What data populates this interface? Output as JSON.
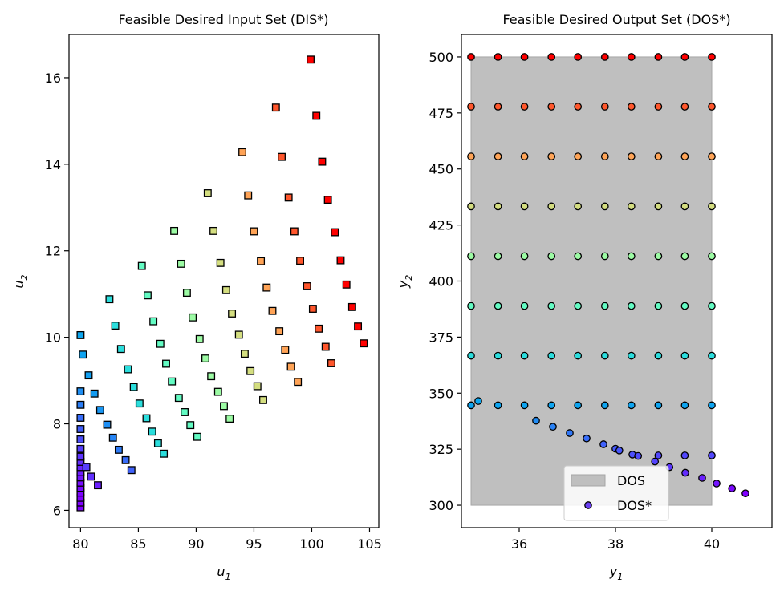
{
  "chart_data": [
    {
      "type": "scatter",
      "title": "Feasible Desired Input Set (DIS*)",
      "xlabel": "u",
      "xlabel_sub": "1",
      "ylabel": "u",
      "ylabel_sub": "2",
      "xlim": [
        79,
        105.8
      ],
      "ylim": [
        5.6,
        17.0
      ],
      "xticks": [
        80,
        85,
        90,
        95,
        100,
        105
      ],
      "yticks": [
        6,
        8,
        10,
        12,
        14,
        16
      ],
      "marker": "square",
      "colormap": "rainbow",
      "color_value_range": [
        300,
        500
      ],
      "grid": false,
      "points": [
        {
          "x": 80.0,
          "y": 6.07,
          "c": 300
        },
        {
          "x": 80.0,
          "y": 6.18,
          "c": 300
        },
        {
          "x": 80.0,
          "y": 6.29,
          "c": 300
        },
        {
          "x": 80.0,
          "y": 6.41,
          "c": 301
        },
        {
          "x": 80.0,
          "y": 6.52,
          "c": 302
        },
        {
          "x": 80.0,
          "y": 6.64,
          "c": 303
        },
        {
          "x": 80.0,
          "y": 6.76,
          "c": 305
        },
        {
          "x": 80.0,
          "y": 6.88,
          "c": 307
        },
        {
          "x": 80.0,
          "y": 7.0,
          "c": 309
        },
        {
          "x": 80.0,
          "y": 7.12,
          "c": 311
        },
        {
          "x": 80.0,
          "y": 7.24,
          "c": 313
        },
        {
          "x": 80.0,
          "y": 7.42,
          "c": 316
        },
        {
          "x": 80.0,
          "y": 7.64,
          "c": 320
        },
        {
          "x": 80.0,
          "y": 7.88,
          "c": 324
        },
        {
          "x": 80.0,
          "y": 8.14,
          "c": 328
        },
        {
          "x": 80.0,
          "y": 8.44,
          "c": 333
        },
        {
          "x": 80.0,
          "y": 8.75,
          "c": 338
        },
        {
          "x": 80.0,
          "y": 10.05,
          "c": 345
        },
        {
          "x": 80.5,
          "y": 7.0,
          "c": 316
        },
        {
          "x": 80.9,
          "y": 6.78,
          "c": 312
        },
        {
          "x": 81.5,
          "y": 6.58,
          "c": 308
        },
        {
          "x": 80.2,
          "y": 9.6,
          "c": 344
        },
        {
          "x": 80.7,
          "y": 9.12,
          "c": 343
        },
        {
          "x": 81.2,
          "y": 8.7,
          "c": 342
        },
        {
          "x": 81.7,
          "y": 8.32,
          "c": 340
        },
        {
          "x": 82.3,
          "y": 7.98,
          "c": 338
        },
        {
          "x": 82.8,
          "y": 7.68,
          "c": 335
        },
        {
          "x": 83.3,
          "y": 7.4,
          "c": 332
        },
        {
          "x": 83.9,
          "y": 7.16,
          "c": 328
        },
        {
          "x": 84.4,
          "y": 6.93,
          "c": 325
        },
        {
          "x": 82.5,
          "y": 10.88,
          "c": 367
        },
        {
          "x": 83.0,
          "y": 10.27,
          "c": 367
        },
        {
          "x": 83.5,
          "y": 9.73,
          "c": 367
        },
        {
          "x": 84.1,
          "y": 9.26,
          "c": 367
        },
        {
          "x": 84.6,
          "y": 8.85,
          "c": 367
        },
        {
          "x": 85.1,
          "y": 8.47,
          "c": 367
        },
        {
          "x": 85.7,
          "y": 8.13,
          "c": 367
        },
        {
          "x": 86.2,
          "y": 7.82,
          "c": 367
        },
        {
          "x": 86.7,
          "y": 7.55,
          "c": 367
        },
        {
          "x": 87.2,
          "y": 7.31,
          "c": 367
        },
        {
          "x": 85.3,
          "y": 11.65,
          "c": 389
        },
        {
          "x": 85.8,
          "y": 10.97,
          "c": 389
        },
        {
          "x": 86.3,
          "y": 10.37,
          "c": 389
        },
        {
          "x": 86.9,
          "y": 9.85,
          "c": 389
        },
        {
          "x": 87.4,
          "y": 9.39,
          "c": 389
        },
        {
          "x": 87.9,
          "y": 8.98,
          "c": 389
        },
        {
          "x": 88.5,
          "y": 8.6,
          "c": 389
        },
        {
          "x": 89.0,
          "y": 8.27,
          "c": 389
        },
        {
          "x": 89.5,
          "y": 7.97,
          "c": 389
        },
        {
          "x": 90.1,
          "y": 7.7,
          "c": 389
        },
        {
          "x": 88.1,
          "y": 12.46,
          "c": 411
        },
        {
          "x": 88.7,
          "y": 11.7,
          "c": 411
        },
        {
          "x": 89.2,
          "y": 11.03,
          "c": 411
        },
        {
          "x": 89.7,
          "y": 10.46,
          "c": 411
        },
        {
          "x": 90.3,
          "y": 9.96,
          "c": 411
        },
        {
          "x": 90.8,
          "y": 9.51,
          "c": 411
        },
        {
          "x": 91.3,
          "y": 9.1,
          "c": 411
        },
        {
          "x": 91.9,
          "y": 8.74,
          "c": 411
        },
        {
          "x": 92.4,
          "y": 8.41,
          "c": 411
        },
        {
          "x": 92.9,
          "y": 8.12,
          "c": 411
        },
        {
          "x": 91.0,
          "y": 13.33,
          "c": 433
        },
        {
          "x": 91.5,
          "y": 12.46,
          "c": 433
        },
        {
          "x": 92.1,
          "y": 11.72,
          "c": 433
        },
        {
          "x": 92.6,
          "y": 11.09,
          "c": 433
        },
        {
          "x": 93.1,
          "y": 10.55,
          "c": 433
        },
        {
          "x": 93.7,
          "y": 10.06,
          "c": 433
        },
        {
          "x": 94.2,
          "y": 9.62,
          "c": 433
        },
        {
          "x": 94.7,
          "y": 9.22,
          "c": 433
        },
        {
          "x": 95.3,
          "y": 8.87,
          "c": 433
        },
        {
          "x": 95.8,
          "y": 8.55,
          "c": 433
        },
        {
          "x": 94.0,
          "y": 14.28,
          "c": 456
        },
        {
          "x": 94.5,
          "y": 13.28,
          "c": 456
        },
        {
          "x": 95.0,
          "y": 12.45,
          "c": 456
        },
        {
          "x": 95.6,
          "y": 11.76,
          "c": 456
        },
        {
          "x": 96.1,
          "y": 11.15,
          "c": 456
        },
        {
          "x": 96.6,
          "y": 10.61,
          "c": 456
        },
        {
          "x": 97.2,
          "y": 10.14,
          "c": 456
        },
        {
          "x": 97.7,
          "y": 9.71,
          "c": 456
        },
        {
          "x": 98.2,
          "y": 9.32,
          "c": 456
        },
        {
          "x": 98.8,
          "y": 8.97,
          "c": 456
        },
        {
          "x": 96.9,
          "y": 15.31,
          "c": 478
        },
        {
          "x": 97.4,
          "y": 14.17,
          "c": 478
        },
        {
          "x": 98.0,
          "y": 13.23,
          "c": 478
        },
        {
          "x": 98.5,
          "y": 12.45,
          "c": 478
        },
        {
          "x": 99.0,
          "y": 11.77,
          "c": 478
        },
        {
          "x": 99.6,
          "y": 11.18,
          "c": 478
        },
        {
          "x": 100.1,
          "y": 10.66,
          "c": 478
        },
        {
          "x": 100.6,
          "y": 10.2,
          "c": 478
        },
        {
          "x": 101.2,
          "y": 9.78,
          "c": 478
        },
        {
          "x": 101.7,
          "y": 9.4,
          "c": 478
        },
        {
          "x": 99.9,
          "y": 16.42,
          "c": 500
        },
        {
          "x": 100.4,
          "y": 15.12,
          "c": 500
        },
        {
          "x": 100.9,
          "y": 14.06,
          "c": 500
        },
        {
          "x": 101.4,
          "y": 13.18,
          "c": 500
        },
        {
          "x": 102.0,
          "y": 12.43,
          "c": 500
        },
        {
          "x": 102.5,
          "y": 11.78,
          "c": 500
        },
        {
          "x": 103.0,
          "y": 11.22,
          "c": 500
        },
        {
          "x": 103.5,
          "y": 10.7,
          "c": 500
        },
        {
          "x": 104.0,
          "y": 10.25,
          "c": 500
        },
        {
          "x": 104.5,
          "y": 9.86,
          "c": 500
        }
      ]
    },
    {
      "type": "scatter",
      "title": "Feasible Desired Output Set (DOS*)",
      "xlabel": "y",
      "xlabel_sub": "1",
      "ylabel": "y",
      "ylabel_sub": "2",
      "xlim": [
        34.8,
        41.25
      ],
      "ylim": [
        290,
        510
      ],
      "xticks": [
        36,
        38,
        40
      ],
      "yticks": [
        300,
        325,
        350,
        375,
        400,
        425,
        450,
        475,
        500
      ],
      "marker": "circle",
      "colormap": "rainbow",
      "color_value_range": [
        300,
        500
      ],
      "grid": false,
      "region": {
        "name": "DOS",
        "x": [
          35,
          40
        ],
        "y": [
          300,
          500
        ],
        "color": "#bfbfbf"
      },
      "legend": {
        "position": "lower-center",
        "entries": [
          {
            "label": "DOS",
            "kind": "patch"
          },
          {
            "label": "DOS*",
            "kind": "marker"
          }
        ]
      },
      "grid_rows_y2": [
        344.6,
        366.7,
        388.9,
        411.1,
        433.3,
        455.6,
        477.8,
        500.0
      ],
      "grid_cols_y1": [
        35.0,
        35.56,
        36.11,
        36.67,
        37.22,
        37.78,
        38.33,
        38.89,
        39.44,
        40.0
      ],
      "lower_curve": [
        {
          "x": 35.15,
          "y": 346.5,
          "c": 345
        },
        {
          "x": 36.35,
          "y": 337.7,
          "c": 337
        },
        {
          "x": 36.7,
          "y": 335.0,
          "c": 334
        },
        {
          "x": 37.05,
          "y": 332.2,
          "c": 331
        },
        {
          "x": 37.4,
          "y": 329.8,
          "c": 328
        },
        {
          "x": 37.75,
          "y": 327.2,
          "c": 325
        },
        {
          "x": 38.0,
          "y": 325.2,
          "c": 323
        },
        {
          "x": 38.08,
          "y": 324.4,
          "c": 322
        },
        {
          "x": 38.35,
          "y": 322.6,
          "c": 320
        },
        {
          "x": 38.47,
          "y": 322.0,
          "c": 319
        },
        {
          "x": 38.82,
          "y": 319.5,
          "c": 317
        },
        {
          "x": 39.12,
          "y": 317.0,
          "c": 314
        },
        {
          "x": 39.45,
          "y": 314.5,
          "c": 311
        },
        {
          "x": 39.8,
          "y": 312.2,
          "c": 308
        },
        {
          "x": 40.1,
          "y": 309.7,
          "c": 305
        },
        {
          "x": 40.42,
          "y": 307.5,
          "c": 302
        },
        {
          "x": 40.7,
          "y": 305.3,
          "c": 300
        },
        {
          "x": 38.89,
          "y": 322.2,
          "c": 318
        },
        {
          "x": 39.44,
          "y": 322.2,
          "c": 318
        },
        {
          "x": 40.0,
          "y": 322.2,
          "c": 318
        }
      ]
    }
  ]
}
